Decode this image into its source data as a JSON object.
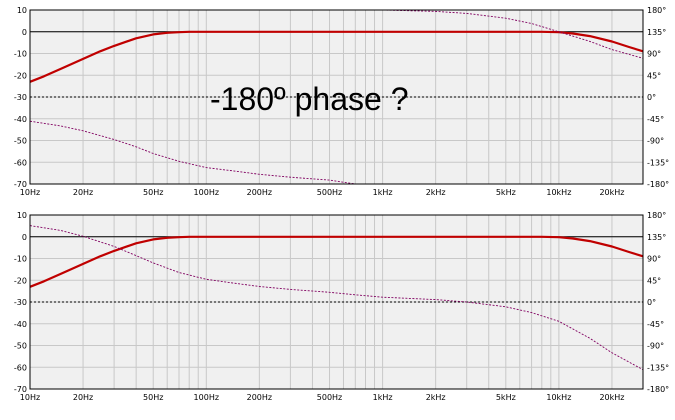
{
  "annotation": "-180º phase ?",
  "colors": {
    "plot_bg": "#f0f0f0",
    "grid": "#c8c8c8",
    "magnitude": "#c00000",
    "phase": "#800060",
    "reference": "#000000"
  },
  "chart_data": [
    {
      "type": "line",
      "x_scale": "log",
      "xlim": [
        10,
        30000
      ],
      "ylim": [
        -70,
        10
      ],
      "y2lim": [
        -180,
        180
      ],
      "x_ticks": [
        "10Hz",
        "20Hz",
        "50Hz",
        "100Hz",
        "200Hz",
        "500Hz",
        "1kHz",
        "2kHz",
        "5kHz",
        "10kHz",
        "20kHz"
      ],
      "x_tick_values": [
        10,
        20,
        50,
        100,
        200,
        500,
        1000,
        2000,
        5000,
        10000,
        20000
      ],
      "y_ticks": [
        "10",
        "0",
        "-10",
        "-20",
        "-30",
        "-40",
        "-50",
        "-60",
        "-70"
      ],
      "y_tick_values": [
        10,
        0,
        -10,
        -20,
        -30,
        -40,
        -50,
        -60,
        -70
      ],
      "y2_ticks": [
        "180°",
        "135°",
        "90°",
        "45°",
        "0°",
        "-45°",
        "-90°",
        "-135°",
        "-180°"
      ],
      "y2_tick_values": [
        180,
        135,
        90,
        45,
        0,
        -45,
        -90,
        -135,
        -180
      ],
      "reference_lines": {
        "y_left": 0,
        "y_right": 0
      },
      "grid": true,
      "series": [
        {
          "axis": "left",
          "style": "solid",
          "x": [
            10,
            12,
            15,
            20,
            25,
            30,
            40,
            50,
            60,
            70,
            80,
            100,
            200,
            500,
            1000,
            2000,
            5000,
            8000,
            10000,
            12000,
            15000,
            20000,
            25000,
            30000
          ],
          "y": [
            -23,
            -20.5,
            -17,
            -12.5,
            -9,
            -6.5,
            -3,
            -1.2,
            -0.5,
            -0.2,
            0,
            0,
            0,
            0,
            0,
            0,
            0,
            0,
            -0.2,
            -0.8,
            -2,
            -4.5,
            -7,
            -9
          ]
        },
        {
          "axis": "right",
          "style": "dashed",
          "x": [
            10,
            15,
            20,
            30,
            40,
            50,
            70,
            100,
            150,
            200,
            300,
            500,
            700
          ],
          "y": [
            -50,
            -60,
            -70,
            -88,
            -103,
            -117,
            -133,
            -146,
            -154,
            -160,
            -166,
            -172,
            -180
          ],
          "x2": [
            1000,
            2000,
            3000,
            5000,
            7000,
            10000,
            15000,
            20000,
            30000
          ],
          "y2": [
            180,
            177,
            173,
            163,
            152,
            135,
            115,
            98,
            80
          ]
        }
      ]
    },
    {
      "type": "line",
      "x_scale": "log",
      "xlim": [
        10,
        30000
      ],
      "ylim": [
        -70,
        10
      ],
      "y2lim": [
        -180,
        180
      ],
      "x_ticks": [
        "10Hz",
        "20Hz",
        "50Hz",
        "100Hz",
        "200Hz",
        "500Hz",
        "1kHz",
        "2kHz",
        "5kHz",
        "10kHz",
        "20kHz"
      ],
      "x_tick_values": [
        10,
        20,
        50,
        100,
        200,
        500,
        1000,
        2000,
        5000,
        10000,
        20000
      ],
      "y_ticks": [
        "10",
        "0",
        "-10",
        "-20",
        "-30",
        "-40",
        "-50",
        "-60",
        "-70"
      ],
      "y_tick_values": [
        10,
        0,
        -10,
        -20,
        -30,
        -40,
        -50,
        -60,
        -70
      ],
      "y2_ticks": [
        "180°",
        "135°",
        "90°",
        "45°",
        "0°",
        "-45°",
        "-90°",
        "-135°",
        "-180°"
      ],
      "y2_tick_values": [
        180,
        135,
        90,
        45,
        0,
        -45,
        -90,
        -135,
        -180
      ],
      "reference_lines": {
        "y_left": 0,
        "y_right": 0
      },
      "grid": true,
      "series": [
        {
          "axis": "left",
          "style": "solid",
          "x": [
            10,
            12,
            15,
            20,
            25,
            30,
            40,
            50,
            60,
            70,
            80,
            100,
            200,
            500,
            1000,
            2000,
            5000,
            8000,
            10000,
            12000,
            15000,
            20000,
            25000,
            30000
          ],
          "y": [
            -23,
            -20.5,
            -17,
            -12.5,
            -9,
            -6.5,
            -3,
            -1.2,
            -0.5,
            -0.2,
            0,
            0,
            0,
            0,
            0,
            0,
            0,
            0,
            -0.2,
            -0.8,
            -2,
            -4.5,
            -7,
            -9
          ]
        },
        {
          "axis": "right",
          "style": "dashed",
          "x": [
            10,
            15,
            20,
            30,
            40,
            50,
            70,
            100,
            150,
            200,
            300,
            500,
            700,
            1000,
            2000,
            3000,
            5000,
            7000,
            10000,
            15000,
            20000,
            30000
          ],
          "y": [
            158,
            148,
            136,
            115,
            96,
            81,
            61,
            47,
            38,
            32,
            26,
            20,
            15,
            10,
            5,
            0,
            -10,
            -22,
            -40,
            -75,
            -105,
            -140
          ]
        }
      ]
    }
  ]
}
